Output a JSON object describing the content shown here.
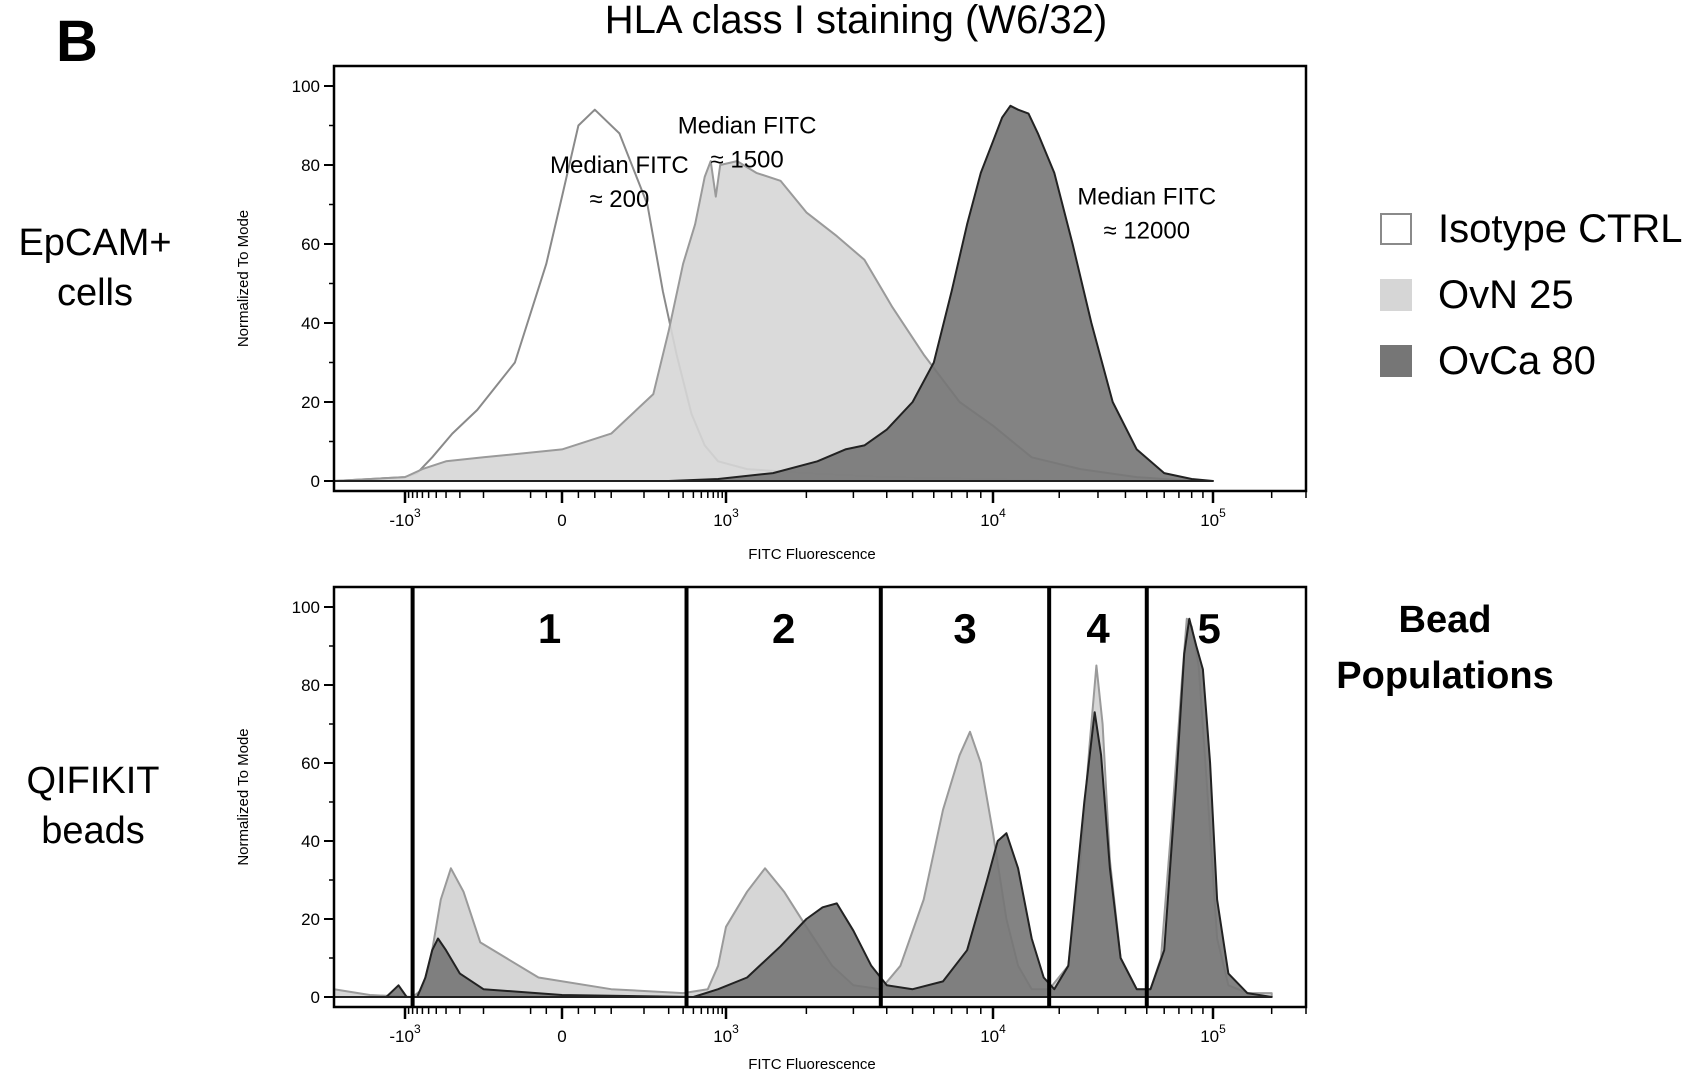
{
  "figure": {
    "panel_letter": "B",
    "title": "HLA class I staining (W6/32)",
    "row_labels": [
      {
        "line1": "EpCAM+",
        "line2": "cells"
      },
      {
        "line1": "QIFIKIT",
        "line2": "beads"
      }
    ],
    "legend": [
      {
        "label": "Isotype CTRL",
        "fill": "#ffffff",
        "stroke": "#8a8a8a"
      },
      {
        "label": "OvN 25",
        "fill": "#d6d6d6",
        "stroke": "#d6d6d6"
      },
      {
        "label": "OvCa 80",
        "fill": "#767676",
        "stroke": "#767676"
      }
    ],
    "bead_title": {
      "line1": "Bead",
      "line2": "Populations"
    }
  },
  "chart_data": [
    {
      "type": "area",
      "xlabel": "FITC Fluorescence",
      "ylabel": "Normalized To Mode",
      "xscale": "biexponential",
      "ylim": [
        0,
        100
      ],
      "yticks": [
        0,
        20,
        40,
        60,
        80,
        100
      ],
      "xtick_labels": [
        "-10^3",
        "0",
        "10^3",
        "10^4",
        "10^5"
      ],
      "xtick_values": [
        -1000,
        0,
        1000,
        10000,
        100000
      ],
      "annotations": [
        {
          "line1": "Median FITC",
          "line2": "≈ 200",
          "x": 70,
          "y": 78
        },
        {
          "line1": "Median FITC",
          "line2": "≈ 1500",
          "x": 1200,
          "y": 88
        },
        {
          "line1": "Median FITC",
          "line2": "≈ 12000",
          "x": 50000,
          "y": 70
        }
      ],
      "series": [
        {
          "name": "Isotype CTRL",
          "fill": "#ffffff",
          "stroke": "#8a8a8a",
          "points": [
            [
              -1700,
              0
            ],
            [
              -1000,
              1
            ],
            [
              -700,
              2
            ],
            [
              -450,
              6
            ],
            [
              -250,
              12
            ],
            [
              -120,
              18
            ],
            [
              -60,
              30
            ],
            [
              -20,
              55
            ],
            [
              0,
              72
            ],
            [
              20,
              90
            ],
            [
              40,
              94
            ],
            [
              70,
              88
            ],
            [
              110,
              70
            ],
            [
              170,
              48
            ],
            [
              250,
              32
            ],
            [
              380,
              17
            ],
            [
              550,
              9
            ],
            [
              800,
              5
            ],
            [
              1200,
              3
            ],
            [
              2000,
              2
            ],
            [
              4000,
              1
            ],
            [
              10000,
              0.5
            ],
            [
              20000,
              0
            ]
          ]
        },
        {
          "name": "OvN 25",
          "fill": "#d6d6d6",
          "stroke": "#9a9a9a",
          "points": [
            [
              -1700,
              0
            ],
            [
              -1000,
              1
            ],
            [
              -600,
              3
            ],
            [
              -300,
              5
            ],
            [
              -100,
              6
            ],
            [
              0,
              8
            ],
            [
              60,
              12
            ],
            [
              130,
              22
            ],
            [
              200,
              38
            ],
            [
              300,
              55
            ],
            [
              420,
              65
            ],
            [
              550,
              77
            ],
            [
              650,
              81
            ],
            [
              750,
              72
            ],
            [
              850,
              80
            ],
            [
              1100,
              81
            ],
            [
              1300,
              78
            ],
            [
              1600,
              76
            ],
            [
              2000,
              68
            ],
            [
              2600,
              62
            ],
            [
              3300,
              56
            ],
            [
              4200,
              44
            ],
            [
              5500,
              32
            ],
            [
              7500,
              20
            ],
            [
              10000,
              14
            ],
            [
              15000,
              6
            ],
            [
              25000,
              3
            ],
            [
              45000,
              1
            ],
            [
              80000,
              0
            ]
          ]
        },
        {
          "name": "OvCa 80",
          "fill": "#767676",
          "stroke": "#222222",
          "points": [
            [
              -1700,
              0
            ],
            [
              200,
              0
            ],
            [
              800,
              0.5
            ],
            [
              1500,
              2
            ],
            [
              2200,
              5
            ],
            [
              2800,
              8
            ],
            [
              3300,
              9
            ],
            [
              4000,
              13
            ],
            [
              5000,
              20
            ],
            [
              6000,
              30
            ],
            [
              7000,
              48
            ],
            [
              8000,
              65
            ],
            [
              9000,
              78
            ],
            [
              10000,
              86
            ],
            [
              11000,
              92
            ],
            [
              12000,
              95
            ],
            [
              13000,
              94
            ],
            [
              14500,
              93
            ],
            [
              16000,
              88
            ],
            [
              19000,
              78
            ],
            [
              23000,
              60
            ],
            [
              28000,
              40
            ],
            [
              35000,
              20
            ],
            [
              45000,
              8
            ],
            [
              60000,
              2
            ],
            [
              80000,
              0.5
            ],
            [
              100000,
              0
            ]
          ]
        }
      ]
    },
    {
      "type": "area",
      "xlabel": "FITC Fluorescence",
      "ylabel": "Normalized To Mode",
      "xscale": "biexponential",
      "ylim": [
        0,
        100
      ],
      "yticks": [
        0,
        20,
        40,
        60,
        80,
        100
      ],
      "xtick_labels": [
        "-10^3",
        "0",
        "10^3",
        "10^4",
        "10^5"
      ],
      "xtick_values": [
        -1000,
        0,
        1000,
        10000,
        100000
      ],
      "gates": [
        {
          "label": "1",
          "from": -800,
          "to": 330
        },
        {
          "label": "2",
          "from": 330,
          "to": 3800
        },
        {
          "label": "3",
          "from": 3800,
          "to": 18000
        },
        {
          "label": "4",
          "from": 18000,
          "to": 50000
        },
        {
          "label": "5",
          "from": 50000,
          "to": 200000
        }
      ],
      "series": [
        {
          "name": "OvN 25",
          "fill": "#d6d6d6",
          "stroke": "#9a9a9a",
          "points": [
            [
              -1700,
              2
            ],
            [
              -1300,
              0.5
            ],
            [
              -800,
              0
            ],
            [
              -600,
              2
            ],
            [
              -450,
              12
            ],
            [
              -350,
              25
            ],
            [
              -260,
              33
            ],
            [
              -180,
              27
            ],
            [
              -110,
              14
            ],
            [
              -30,
              5
            ],
            [
              60,
              2
            ],
            [
              300,
              1
            ],
            [
              600,
              2
            ],
            [
              800,
              8
            ],
            [
              1000,
              18
            ],
            [
              1200,
              27
            ],
            [
              1400,
              33
            ],
            [
              1650,
              27
            ],
            [
              2000,
              18
            ],
            [
              2500,
              8
            ],
            [
              3000,
              3
            ],
            [
              3800,
              2
            ],
            [
              4500,
              8
            ],
            [
              5500,
              25
            ],
            [
              6500,
              48
            ],
            [
              7500,
              62
            ],
            [
              8200,
              68
            ],
            [
              9000,
              60
            ],
            [
              10000,
              42
            ],
            [
              11500,
              20
            ],
            [
              13000,
              8
            ],
            [
              15000,
              2
            ],
            [
              18000,
              2
            ],
            [
              22000,
              8
            ],
            [
              25000,
              35
            ],
            [
              27500,
              65
            ],
            [
              29500,
              85
            ],
            [
              31500,
              70
            ],
            [
              34000,
              35
            ],
            [
              38000,
              10
            ],
            [
              45000,
              2
            ],
            [
              52000,
              2
            ],
            [
              58000,
              10
            ],
            [
              65000,
              45
            ],
            [
              72000,
              80
            ],
            [
              76000,
              97
            ],
            [
              80000,
              95
            ],
            [
              86000,
              85
            ],
            [
              95000,
              50
            ],
            [
              105000,
              15
            ],
            [
              120000,
              3
            ],
            [
              150000,
              1
            ],
            [
              200000,
              1
            ]
          ]
        },
        {
          "name": "OvCa 80",
          "fill": "#767676",
          "stroke": "#222222",
          "points": [
            [
              -1700,
              0
            ],
            [
              -1150,
              0
            ],
            [
              -1050,
              3
            ],
            [
              -950,
              0
            ],
            [
              -700,
              0
            ],
            [
              -550,
              5
            ],
            [
              -450,
              12
            ],
            [
              -380,
              15
            ],
            [
              -300,
              12
            ],
            [
              -200,
              6
            ],
            [
              -100,
              2
            ],
            [
              0,
              0.5
            ],
            [
              400,
              0
            ],
            [
              800,
              2
            ],
            [
              1200,
              5
            ],
            [
              1600,
              13
            ],
            [
              2000,
              20
            ],
            [
              2300,
              23
            ],
            [
              2600,
              24
            ],
            [
              3000,
              17
            ],
            [
              3500,
              8
            ],
            [
              4000,
              3
            ],
            [
              5000,
              2
            ],
            [
              6500,
              4
            ],
            [
              8000,
              12
            ],
            [
              9500,
              30
            ],
            [
              10500,
              40
            ],
            [
              11500,
              42
            ],
            [
              13000,
              33
            ],
            [
              15000,
              15
            ],
            [
              17000,
              5
            ],
            [
              19000,
              2
            ],
            [
              22000,
              8
            ],
            [
              26000,
              50
            ],
            [
              29000,
              73
            ],
            [
              31000,
              62
            ],
            [
              34000,
              33
            ],
            [
              38000,
              10
            ],
            [
              45000,
              2
            ],
            [
              52000,
              2
            ],
            [
              60000,
              12
            ],
            [
              68000,
              55
            ],
            [
              74000,
              88
            ],
            [
              78000,
              97
            ],
            [
              84000,
              90
            ],
            [
              90000,
              84
            ],
            [
              97000,
              60
            ],
            [
              105000,
              25
            ],
            [
              120000,
              6
            ],
            [
              150000,
              1
            ],
            [
              200000,
              0
            ]
          ]
        }
      ]
    }
  ]
}
